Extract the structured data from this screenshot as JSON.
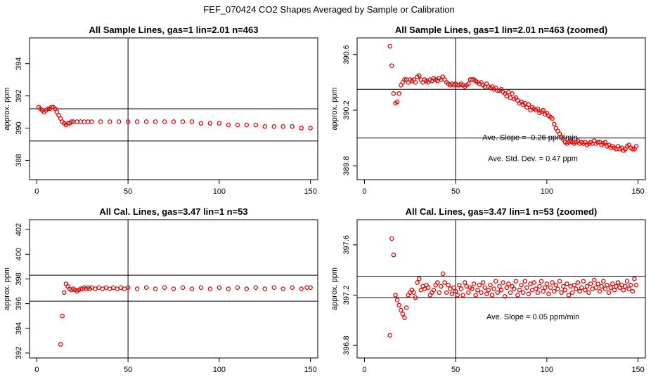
{
  "figure_title": "FEF_070424  CO2 Shapes Averaged by Sample or Calibration",
  "colors": {
    "points": "#dd0000",
    "axes": "#000000",
    "background": "#ffffff"
  },
  "chart_data": [
    {
      "type": "scatter",
      "title": "All Sample Lines, gas=1 lin=2.01 n=463",
      "xlabel": "",
      "ylabel": "approx. ppm",
      "xlim": [
        -4,
        154
      ],
      "ylim": [
        386.8,
        395.6
      ],
      "xticks": [
        0,
        50,
        100,
        150
      ],
      "yticks": [
        386,
        388,
        390,
        392,
        394
      ],
      "ref_hlines": [
        389.2,
        391.2
      ],
      "ref_vline": 50,
      "annotations": [],
      "series": [
        {
          "x": [
            1,
            2,
            3,
            4,
            5,
            6,
            7,
            8,
            9,
            10,
            11,
            12,
            13,
            14,
            15,
            16,
            17,
            18,
            19,
            20,
            22,
            24,
            26,
            28,
            30,
            35,
            40,
            45,
            50,
            55,
            60,
            65,
            70,
            75,
            80,
            85,
            90,
            95,
            100,
            105,
            110,
            115,
            120,
            125,
            130,
            135,
            140,
            145,
            150
          ],
          "y": [
            391.3,
            391.2,
            391.1,
            391.0,
            391.1,
            391.2,
            391.2,
            391.3,
            391.3,
            391.2,
            391.0,
            390.8,
            390.6,
            390.4,
            390.3,
            390.2,
            390.3,
            390.3,
            390.4,
            390.4,
            390.4,
            390.4,
            390.4,
            390.4,
            390.4,
            390.4,
            390.4,
            390.4,
            390.4,
            390.4,
            390.4,
            390.4,
            390.4,
            390.4,
            390.4,
            390.4,
            390.3,
            390.3,
            390.3,
            390.2,
            390.2,
            390.2,
            390.2,
            390.1,
            390.1,
            390.1,
            390.1,
            390.0,
            390.0
          ]
        }
      ]
    },
    {
      "type": "scatter",
      "title": "All Sample Lines, gas=1 lin=2.01 n=463 (zoomed)",
      "xlabel": "",
      "ylabel": "approx. ppm",
      "xlim": [
        -4,
        154
      ],
      "ylim": [
        389.7,
        390.72
      ],
      "xticks": [
        0,
        50,
        100,
        150
      ],
      "yticks": [
        389.8,
        390.2,
        390.6
      ],
      "ref_hlines": [
        390.0,
        390.35
      ],
      "ref_vline": 50,
      "annotations": [
        "Ave. Slope =  -0.26  ppm/min",
        "Ave. Std. Dev. =  0.47  ppm"
      ],
      "series": [
        {
          "x": [
            14,
            15,
            16,
            17,
            18,
            19,
            20,
            21,
            22,
            23,
            24,
            25,
            26,
            27,
            28,
            29,
            30,
            31,
            32,
            33,
            34,
            35,
            36,
            37,
            38,
            39,
            40,
            41,
            42,
            43,
            44,
            45,
            46,
            47,
            48,
            49,
            50,
            51,
            52,
            53,
            54,
            55,
            56,
            57,
            58,
            59,
            60,
            61,
            62,
            63,
            64,
            65,
            66,
            67,
            68,
            69,
            70,
            71,
            72,
            73,
            74,
            75,
            76,
            77,
            78,
            79,
            80,
            81,
            82,
            83,
            84,
            85,
            86,
            87,
            88,
            89,
            90,
            91,
            92,
            93,
            94,
            95,
            96,
            97,
            98,
            99,
            100,
            101,
            102,
            103,
            104,
            105,
            106,
            107,
            108,
            109,
            110,
            111,
            112,
            113,
            114,
            115,
            116,
            117,
            118,
            119,
            120,
            121,
            122,
            123,
            124,
            125,
            126,
            127,
            128,
            129,
            130,
            131,
            132,
            133,
            134,
            135,
            136,
            137,
            138,
            139,
            140,
            141,
            142,
            143,
            144,
            145,
            146,
            147,
            148,
            149
          ],
          "y": [
            390.66,
            390.52,
            390.32,
            390.25,
            390.26,
            390.32,
            390.38,
            390.4,
            390.42,
            390.42,
            390.4,
            390.42,
            390.41,
            390.42,
            390.4,
            390.44,
            390.45,
            390.42,
            390.4,
            390.42,
            390.41,
            390.4,
            390.42,
            390.41,
            390.43,
            390.42,
            390.41,
            390.43,
            390.42,
            390.44,
            390.42,
            390.4,
            390.39,
            390.38,
            390.39,
            390.38,
            390.39,
            390.38,
            390.38,
            390.39,
            390.38,
            390.37,
            390.38,
            390.39,
            390.42,
            390.42,
            390.42,
            390.41,
            390.4,
            390.39,
            390.4,
            390.38,
            390.37,
            390.39,
            390.37,
            390.36,
            390.37,
            390.35,
            390.36,
            390.34,
            390.34,
            390.35,
            390.33,
            390.32,
            390.3,
            390.33,
            390.29,
            390.32,
            390.28,
            390.29,
            390.27,
            390.25,
            390.26,
            390.24,
            390.25,
            390.22,
            390.24,
            390.2,
            390.22,
            390.21,
            390.2,
            390.21,
            390.18,
            390.19,
            390.2,
            390.17,
            390.18,
            390.16,
            390.15,
            390.14,
            390.1,
            390.07,
            390.05,
            390.03,
            390.01,
            389.99,
            389.97,
            389.96,
            389.97,
            389.98,
            389.97,
            389.96,
            389.97,
            389.98,
            389.96,
            389.97,
            389.96,
            389.97,
            389.95,
            389.96,
            389.97,
            389.96,
            389.98,
            389.96,
            389.97,
            389.97,
            389.95,
            389.96,
            389.97,
            389.94,
            389.95,
            389.93,
            389.94,
            389.93,
            389.92,
            389.94,
            389.92,
            389.93,
            389.91,
            389.92,
            389.94,
            389.95,
            389.93,
            389.92,
            389.92,
            389.94
          ]
        }
      ]
    },
    {
      "type": "scatter",
      "title": "All Cal. Lines, gas=3.47 lin=1 n=53",
      "xlabel": "",
      "ylabel": "approx. ppm",
      "xlim": [
        -4,
        154
      ],
      "ylim": [
        391.6,
        402.8
      ],
      "xticks": [
        0,
        50,
        100,
        150
      ],
      "yticks": [
        392,
        394,
        396,
        398,
        400,
        402
      ],
      "ref_hlines": [
        396.2,
        398.3
      ],
      "ref_vline": 50,
      "annotations": [],
      "series": [
        {
          "x": [
            13,
            14,
            15,
            16,
            17,
            18,
            19,
            20,
            21,
            22,
            23,
            24,
            25,
            26,
            27,
            28,
            29,
            30,
            32,
            34,
            36,
            38,
            40,
            42,
            44,
            46,
            48,
            50,
            55,
            60,
            65,
            70,
            75,
            80,
            85,
            90,
            95,
            100,
            105,
            110,
            115,
            120,
            125,
            130,
            135,
            140,
            145,
            148,
            150
          ],
          "y": [
            392.7,
            395.0,
            396.9,
            397.6,
            397.4,
            397.2,
            397.1,
            397.2,
            397.1,
            397.0,
            397.1,
            397.2,
            397.2,
            397.3,
            397.2,
            397.3,
            397.2,
            397.3,
            397.2,
            397.3,
            397.2,
            397.3,
            397.2,
            397.3,
            397.2,
            397.3,
            397.2,
            397.3,
            397.2,
            397.3,
            397.2,
            397.3,
            397.2,
            397.3,
            397.2,
            397.3,
            397.2,
            397.3,
            397.2,
            397.3,
            397.2,
            397.3,
            397.2,
            397.3,
            397.2,
            397.3,
            397.2,
            397.3,
            397.3
          ]
        }
      ]
    },
    {
      "type": "scatter",
      "title": "All Cal. Lines, gas=3.47 lin=1 n=53 (zoomed)",
      "xlabel": "",
      "ylabel": "approx. ppm",
      "xlim": [
        -4,
        154
      ],
      "ylim": [
        396.7,
        397.8
      ],
      "xticks": [
        0,
        50,
        100,
        150
      ],
      "yticks": [
        396.8,
        397.2,
        397.6
      ],
      "ref_hlines": [
        397.18,
        397.35
      ],
      "ref_vline": 50,
      "annotations": [
        "Ave. Slope =  0.05  ppm/min"
      ],
      "series": [
        {
          "x": [
            14,
            15,
            16,
            17,
            18,
            19,
            20,
            21,
            22,
            23,
            24,
            25,
            26,
            27,
            28,
            29,
            30,
            31,
            32,
            33,
            34,
            35,
            36,
            37,
            38,
            39,
            40,
            41,
            42,
            43,
            44,
            45,
            46,
            47,
            48,
            49,
            50,
            51,
            52,
            53,
            54,
            55,
            56,
            57,
            58,
            59,
            60,
            61,
            62,
            63,
            64,
            65,
            66,
            67,
            68,
            69,
            70,
            71,
            72,
            73,
            74,
            75,
            76,
            77,
            78,
            79,
            80,
            81,
            82,
            83,
            84,
            85,
            86,
            87,
            88,
            89,
            90,
            91,
            92,
            93,
            94,
            95,
            96,
            97,
            98,
            99,
            100,
            101,
            102,
            103,
            104,
            105,
            106,
            107,
            108,
            109,
            110,
            111,
            112,
            113,
            114,
            115,
            116,
            117,
            118,
            119,
            120,
            121,
            122,
            123,
            124,
            125,
            126,
            127,
            128,
            129,
            130,
            131,
            132,
            133,
            134,
            135,
            136,
            137,
            138,
            139,
            140,
            141,
            142,
            143,
            144,
            145,
            146,
            147,
            148,
            149
          ],
          "y": [
            396.88,
            397.65,
            397.52,
            397.2,
            397.16,
            397.12,
            397.08,
            397.05,
            397.02,
            397.1,
            397.2,
            397.22,
            397.24,
            397.22,
            397.18,
            397.3,
            397.33,
            397.24,
            397.27,
            397.25,
            397.28,
            397.26,
            397.2,
            397.22,
            397.24,
            397.28,
            397.3,
            397.22,
            397.27,
            397.37,
            397.3,
            397.22,
            397.28,
            397.25,
            397.21,
            397.26,
            397.23,
            397.2,
            397.28,
            397.25,
            397.2,
            397.3,
            397.27,
            397.22,
            397.26,
            397.25,
            397.29,
            397.2,
            397.24,
            397.28,
            397.22,
            397.3,
            397.26,
            397.21,
            397.24,
            397.28,
            397.2,
            397.25,
            397.31,
            397.22,
            397.27,
            397.24,
            397.3,
            397.19,
            397.26,
            397.29,
            397.22,
            397.27,
            397.25,
            397.31,
            397.2,
            397.24,
            397.28,
            397.22,
            397.31,
            397.26,
            397.21,
            397.29,
            397.24,
            397.3,
            397.25,
            397.22,
            397.27,
            397.31,
            397.23,
            397.26,
            397.29,
            397.21,
            397.26,
            397.3,
            397.23,
            397.28,
            397.25,
            397.31,
            397.22,
            397.27,
            397.24,
            397.29,
            397.2,
            397.27,
            397.22,
            397.28,
            397.25,
            397.3,
            397.23,
            397.26,
            397.31,
            397.24,
            397.27,
            397.22,
            397.29,
            397.25,
            397.32,
            397.26,
            397.29,
            397.23,
            397.27,
            397.31,
            397.25,
            397.28,
            397.22,
            397.26,
            397.29,
            397.24,
            397.27,
            397.3,
            397.26,
            397.28,
            397.24,
            397.27,
            397.31,
            397.25,
            397.28,
            397.23,
            397.33,
            397.28
          ]
        }
      ]
    }
  ]
}
